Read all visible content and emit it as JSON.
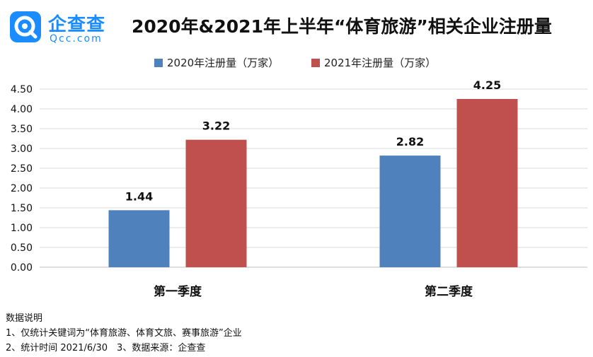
{
  "logo": {
    "name": "企查查",
    "domain": "Qcc.com",
    "icon": "qcc-logo-icon"
  },
  "title": "2020年&2021年上半年“体育旅游”相关企业注册量",
  "chart_data": {
    "type": "bar",
    "title": "2020年&2021年上半年“体育旅游”相关企业注册量",
    "categories": [
      "第一季度",
      "第二季度"
    ],
    "series": [
      {
        "name": "2020年注册量（万家）",
        "color": "#4f81bd",
        "values": [
          1.44,
          2.82
        ]
      },
      {
        "name": "2021年注册量（万家）",
        "color": "#c0504d",
        "values": [
          3.22,
          4.25
        ]
      }
    ],
    "ylim": [
      0,
      4.5
    ],
    "yticks": [
      "0.00",
      "0.50",
      "1.00",
      "1.50",
      "2.00",
      "2.50",
      "3.00",
      "3.50",
      "4.00",
      "4.50"
    ],
    "data_labels": [
      [
        "1.44",
        "2.82"
      ],
      [
        "3.22",
        "4.25"
      ]
    ],
    "grid": true,
    "legend": "top-center"
  },
  "notes": {
    "heading": "数据说明",
    "line1": "1、仅统计关键词为“体育旅游、体育文旅、赛事旅游”企业",
    "line2": "2、统计时间 2021/6/30　3、数据来源：企查查"
  }
}
